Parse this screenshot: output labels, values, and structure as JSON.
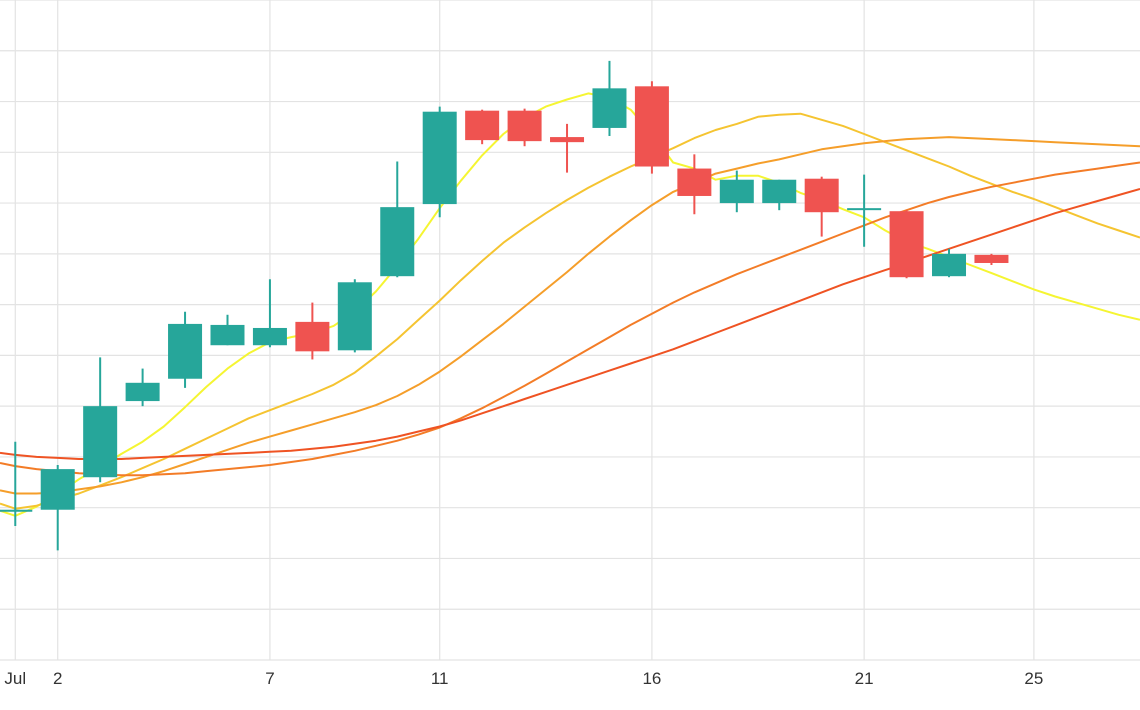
{
  "chart_data": {
    "type": "candlestick",
    "colors": {
      "up": "#26a69a",
      "down": "#ef5350",
      "grid": "#e3e3e3",
      "ma": [
        "#f5f532",
        "#f5c431",
        "#f59e2a",
        "#f37c27",
        "#ef5323"
      ]
    },
    "x_ticks": [
      {
        "day": 1,
        "label": "Jul"
      },
      {
        "day": 2,
        "label": "2"
      },
      {
        "day": 7,
        "label": "7"
      },
      {
        "day": 11,
        "label": "11"
      },
      {
        "day": 16,
        "label": "16"
      },
      {
        "day": 21,
        "label": "21"
      },
      {
        "day": 25,
        "label": "25"
      }
    ],
    "xlim": [
      0.64,
      27.5
    ],
    "ylim": [
      0,
      65
    ],
    "grid": true,
    "candles": [
      {
        "day": 1,
        "open": 14.6,
        "high": 21.5,
        "low": 13.2,
        "close": 14.8
      },
      {
        "day": 2,
        "open": 14.8,
        "high": 19.2,
        "low": 10.8,
        "close": 18.8
      },
      {
        "day": 3,
        "open": 18.0,
        "high": 29.8,
        "low": 17.5,
        "close": 25.0
      },
      {
        "day": 4,
        "open": 25.5,
        "high": 28.7,
        "low": 25.0,
        "close": 27.3
      },
      {
        "day": 5,
        "open": 27.7,
        "high": 34.3,
        "low": 26.8,
        "close": 33.1
      },
      {
        "day": 6,
        "open": 31.0,
        "high": 34.0,
        "low": 31.0,
        "close": 33.0
      },
      {
        "day": 7,
        "open": 31.0,
        "high": 37.5,
        "low": 30.8,
        "close": 32.7
      },
      {
        "day": 8,
        "open": 33.3,
        "high": 35.2,
        "low": 29.6,
        "close": 30.4
      },
      {
        "day": 9,
        "open": 30.5,
        "high": 37.5,
        "low": 30.3,
        "close": 37.2
      },
      {
        "day": 10,
        "open": 37.8,
        "high": 49.1,
        "low": 37.7,
        "close": 44.6
      },
      {
        "day": 11,
        "open": 44.9,
        "high": 54.5,
        "low": 43.6,
        "close": 54.0
      },
      {
        "day": 12,
        "open": 54.1,
        "high": 54.2,
        "low": 50.8,
        "close": 51.2
      },
      {
        "day": 13,
        "open": 54.1,
        "high": 54.3,
        "low": 50.6,
        "close": 51.1
      },
      {
        "day": 14,
        "open": 51.5,
        "high": 52.8,
        "low": 48.0,
        "close": 51.0
      },
      {
        "day": 15,
        "open": 52.4,
        "high": 59.0,
        "low": 51.6,
        "close": 56.3
      },
      {
        "day": 16,
        "open": 56.5,
        "high": 57.0,
        "low": 47.9,
        "close": 48.6
      },
      {
        "day": 17,
        "open": 48.4,
        "high": 49.8,
        "low": 43.9,
        "close": 45.7
      },
      {
        "day": 18,
        "open": 45.0,
        "high": 48.2,
        "low": 44.1,
        "close": 47.3
      },
      {
        "day": 19,
        "open": 45.0,
        "high": 47.3,
        "low": 44.3,
        "close": 47.3
      },
      {
        "day": 20,
        "open": 47.4,
        "high": 47.6,
        "low": 41.7,
        "close": 44.1
      },
      {
        "day": 21,
        "open": 44.4,
        "high": 47.8,
        "low": 40.7,
        "close": 44.5
      },
      {
        "day": 22,
        "open": 44.2,
        "high": 44.3,
        "low": 37.6,
        "close": 37.7
      },
      {
        "day": 23,
        "open": 37.8,
        "high": 40.5,
        "low": 37.7,
        "close": 40.0
      },
      {
        "day": 24,
        "open": 39.9,
        "high": 40.0,
        "low": 38.9,
        "close": 39.1
      }
    ],
    "moving_averages": [
      {
        "x": [
          0.64,
          1,
          1.5,
          2,
          2.5,
          3,
          3.5,
          4,
          4.5,
          5,
          5.5,
          6,
          6.5,
          7,
          7.5,
          8,
          8.5,
          9,
          9.5,
          10,
          10.5,
          11,
          11.5,
          12,
          12.5,
          13,
          13.5,
          14,
          14.5,
          15,
          15.5,
          16,
          16.5,
          17,
          17.5,
          18,
          18.5,
          19,
          19.5,
          20,
          20.5,
          21,
          21.5,
          22,
          22.5,
          23,
          23.5,
          24,
          24.5,
          25,
          25.5,
          26,
          26.5,
          27,
          27.5
        ],
        "y": [
          14.7,
          14.2,
          15.1,
          16.4,
          17.8,
          19.0,
          20.3,
          21.5,
          23.0,
          24.9,
          26.9,
          28.7,
          30.2,
          31.3,
          31.8,
          32.2,
          32.9,
          34.3,
          36.3,
          38.8,
          41.5,
          44.5,
          47.2,
          49.7,
          51.8,
          53.4,
          54.5,
          55.2,
          55.8,
          55.4,
          54.2,
          51.8,
          49.0,
          48.4,
          47.3,
          47.7,
          47.7,
          47.0,
          46.0,
          45.3,
          44.4,
          43.6,
          42.3,
          41.2,
          40.5,
          39.7,
          38.9,
          38.1,
          37.3,
          36.5,
          35.8,
          35.2,
          34.6,
          34.0,
          33.5
        ]
      },
      {
        "x": [
          0.64,
          1,
          1.5,
          2,
          2.5,
          3,
          3.5,
          4,
          4.5,
          5,
          5.5,
          6,
          6.5,
          7,
          7.5,
          8,
          8.5,
          9,
          9.5,
          10,
          10.5,
          11,
          11.5,
          12,
          12.5,
          13,
          13.5,
          14,
          14.5,
          15,
          15.5,
          16,
          16.5,
          17,
          17.5,
          18,
          18.5,
          19,
          19.5,
          20,
          20.5,
          21,
          21.5,
          22,
          22.5,
          23,
          23.5,
          24,
          24.5,
          25,
          25.5,
          26,
          26.5,
          27,
          27.5
        ],
        "y": [
          15.4,
          14.9,
          15.2,
          15.8,
          16.4,
          17.2,
          18.0,
          18.9,
          19.8,
          20.8,
          21.8,
          22.8,
          23.8,
          24.6,
          25.4,
          26.2,
          27.1,
          28.3,
          29.9,
          31.6,
          33.5,
          35.4,
          37.4,
          39.3,
          41.1,
          42.6,
          44.0,
          45.3,
          46.5,
          47.6,
          48.6,
          49.5,
          50.4,
          51.4,
          52.2,
          52.8,
          53.5,
          53.7,
          53.8,
          53.2,
          52.6,
          51.8,
          51.0,
          50.2,
          49.4,
          48.6,
          47.7,
          46.9,
          46.1,
          45.4,
          44.6,
          43.8,
          43.0,
          42.3,
          41.6
        ]
      },
      {
        "x": [
          0.64,
          1,
          1.5,
          2,
          2.5,
          3,
          3.5,
          4,
          4.5,
          5,
          5.5,
          6,
          6.5,
          7,
          7.5,
          8,
          8.5,
          9,
          9.5,
          10,
          10.5,
          11,
          11.5,
          12,
          12.5,
          13,
          13.5,
          14,
          14.5,
          15,
          15.5,
          16,
          16.5,
          17,
          17.5,
          18,
          18.5,
          19,
          19.5,
          20,
          20.5,
          21,
          21.5,
          22,
          22.5,
          23,
          23.5,
          24,
          24.5,
          25,
          25.5,
          26,
          26.5,
          27,
          27.5
        ],
        "y": [
          16.7,
          16.4,
          16.4,
          16.5,
          16.8,
          17.1,
          17.5,
          18.0,
          18.6,
          19.3,
          20.0,
          20.7,
          21.4,
          22.0,
          22.6,
          23.2,
          23.8,
          24.4,
          25.1,
          26.0,
          27.1,
          28.4,
          29.9,
          31.5,
          33.1,
          34.8,
          36.5,
          38.2,
          40.0,
          41.7,
          43.3,
          44.8,
          46.1,
          47.0,
          47.9,
          48.4,
          48.9,
          49.3,
          49.8,
          50.3,
          50.6,
          50.9,
          51.1,
          51.3,
          51.4,
          51.5,
          51.4,
          51.3,
          51.2,
          51.1,
          51.0,
          50.9,
          50.8,
          50.7,
          50.6
        ]
      },
      {
        "x": [
          0.64,
          1,
          1.5,
          2,
          2.5,
          3,
          3.5,
          4,
          4.5,
          5,
          5.5,
          6,
          6.5,
          7,
          7.5,
          8,
          8.5,
          9,
          9.5,
          10,
          10.5,
          11,
          11.5,
          12,
          12.5,
          13,
          13.5,
          14,
          14.5,
          15,
          15.5,
          16,
          16.5,
          17,
          17.5,
          18,
          18.5,
          19,
          19.5,
          20,
          20.5,
          21,
          21.5,
          22,
          22.5,
          23,
          23.5,
          24,
          24.5,
          25,
          25.5,
          26,
          26.5,
          27,
          27.5
        ],
        "y": [
          19.4,
          19.1,
          18.8,
          18.6,
          18.4,
          18.3,
          18.2,
          18.2,
          18.3,
          18.4,
          18.6,
          18.8,
          19.0,
          19.2,
          19.5,
          19.8,
          20.2,
          20.6,
          21.1,
          21.6,
          22.2,
          22.9,
          23.8,
          24.8,
          25.9,
          27.0,
          28.2,
          29.4,
          30.6,
          31.8,
          33.0,
          34.1,
          35.2,
          36.2,
          37.1,
          38.0,
          38.8,
          39.6,
          40.4,
          41.2,
          42.0,
          42.8,
          43.6,
          44.3,
          45.0,
          45.6,
          46.1,
          46.6,
          47.0,
          47.4,
          47.8,
          48.1,
          48.4,
          48.7,
          49.0
        ]
      },
      {
        "x": [
          0.64,
          1,
          1.5,
          2,
          2.5,
          3,
          3.5,
          4,
          4.5,
          5,
          5.5,
          6,
          6.5,
          7,
          7.5,
          8,
          8.5,
          9,
          9.5,
          10,
          10.5,
          11,
          11.5,
          12,
          12.5,
          13,
          13.5,
          14,
          14.5,
          15,
          15.5,
          16,
          16.5,
          17,
          17.5,
          18,
          18.5,
          19,
          19.5,
          20,
          20.5,
          21,
          21.5,
          22,
          22.5,
          23,
          23.5,
          24,
          24.5,
          25,
          25.5,
          26,
          26.5,
          27,
          27.5
        ],
        "y": [
          20.4,
          20.2,
          20.0,
          19.9,
          19.8,
          19.8,
          19.8,
          19.9,
          20.0,
          20.1,
          20.2,
          20.3,
          20.4,
          20.5,
          20.6,
          20.8,
          21.0,
          21.3,
          21.6,
          22.0,
          22.5,
          23.0,
          23.6,
          24.3,
          25.0,
          25.7,
          26.4,
          27.1,
          27.8,
          28.5,
          29.2,
          29.9,
          30.6,
          31.4,
          32.2,
          33.0,
          33.8,
          34.6,
          35.4,
          36.2,
          37.0,
          37.7,
          38.4,
          39.1,
          39.8,
          40.5,
          41.2,
          41.9,
          42.6,
          43.3,
          44.0,
          44.6,
          45.2,
          45.8,
          46.4
        ]
      }
    ]
  }
}
